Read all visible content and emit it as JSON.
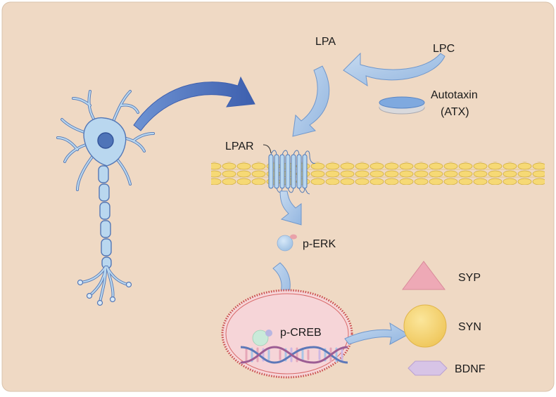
{
  "labels": {
    "lpa": "LPA",
    "lpc": "LPC",
    "autotaxin": "Autotaxin",
    "atx": "(ATX)",
    "lpar": "LPAR",
    "perk": "p-ERK",
    "pcreb": "p-CREB",
    "syp": "SYP",
    "syn": "SYN",
    "bdnf": "BDNF"
  },
  "colors": {
    "background": "#efd9c4",
    "arrow": "#a9c5e6",
    "arrow_dark": "#4f73bd",
    "neuron": "#b9d7ef",
    "membrane": "#f5d66b",
    "nucleus": "#f6d5d8",
    "syp": "#eea9b6",
    "syn": "#f3d170",
    "bdnf": "#d7c4e6"
  }
}
